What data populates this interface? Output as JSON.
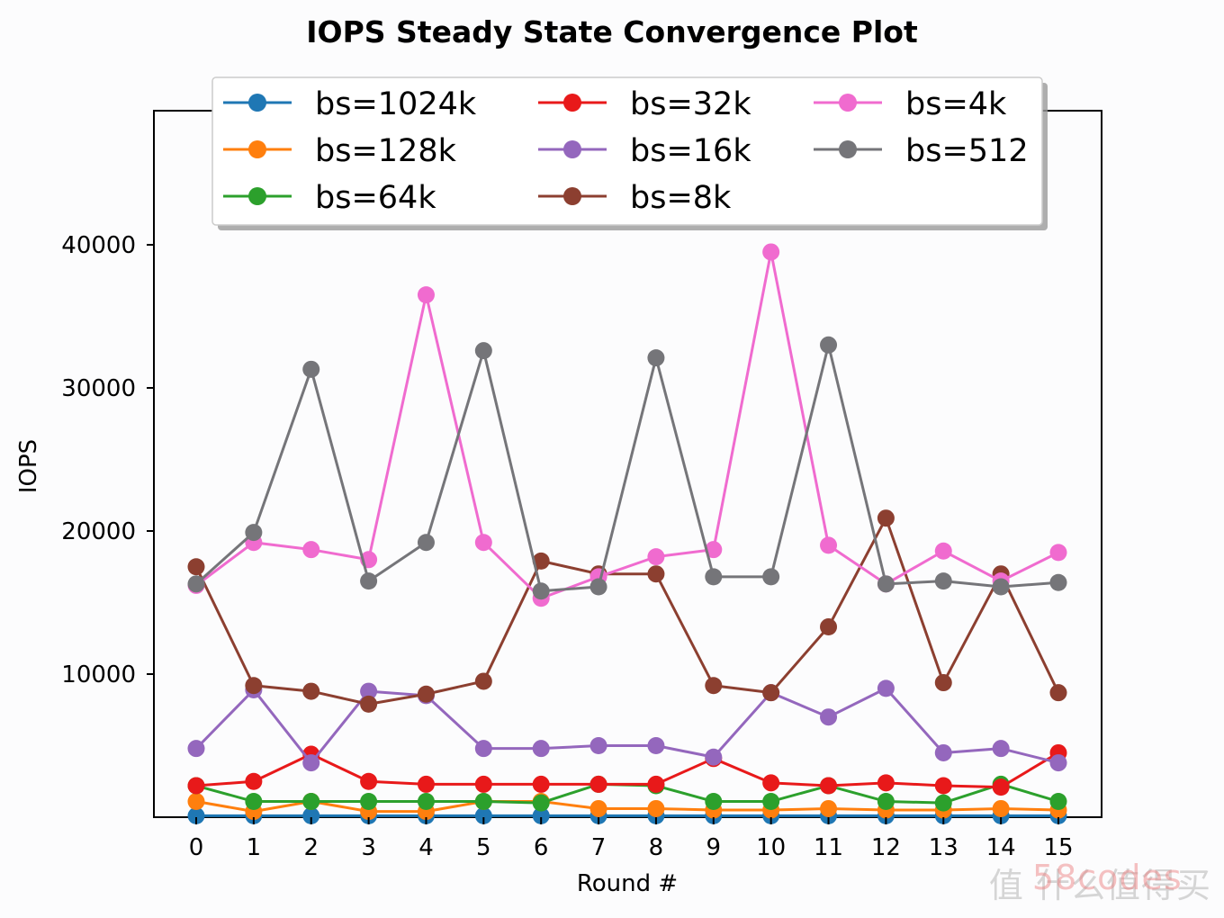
{
  "chart_data": {
    "type": "line",
    "title": "IOPS Steady State Convergence Plot",
    "xlabel": "Round #",
    "ylabel": "IOPS",
    "x": [
      0,
      1,
      2,
      3,
      4,
      5,
      6,
      7,
      8,
      9,
      10,
      11,
      12,
      13,
      14,
      15
    ],
    "xticks": [
      "0",
      "1",
      "2",
      "3",
      "4",
      "5",
      "6",
      "7",
      "8",
      "9",
      "10",
      "11",
      "12",
      "13",
      "14",
      "15"
    ],
    "yticks": [
      10000,
      20000,
      30000,
      40000
    ],
    "ytick_labels": [
      "10000",
      "20000",
      "30000",
      "40000"
    ],
    "xlim": [
      -0.75,
      15.75
    ],
    "ylim": [
      0,
      49300
    ],
    "grid": false,
    "legend_position": "top-center",
    "legend_columns": 3,
    "series": [
      {
        "name": "bs=1024k",
        "color": "#1f77b4",
        "values": [
          100,
          100,
          100,
          100,
          100,
          100,
          100,
          100,
          100,
          100,
          100,
          100,
          100,
          100,
          100,
          100
        ]
      },
      {
        "name": "bs=128k",
        "color": "#ff7f0e",
        "values": [
          1100,
          400,
          1100,
          400,
          400,
          1100,
          1100,
          600,
          600,
          500,
          500,
          600,
          500,
          500,
          600,
          500
        ]
      },
      {
        "name": "bs=64k",
        "color": "#2ca02c",
        "values": [
          2200,
          1100,
          1100,
          1100,
          1100,
          1100,
          1000,
          2300,
          2200,
          1100,
          1100,
          2200,
          1100,
          1000,
          2300,
          1100
        ]
      },
      {
        "name": "bs=32k",
        "color": "#e8191a",
        "values": [
          2200,
          2500,
          4400,
          2500,
          2300,
          2300,
          2300,
          2300,
          2300,
          4100,
          2400,
          2200,
          2400,
          2200,
          2100,
          4500
        ]
      },
      {
        "name": "bs=16k",
        "color": "#9467bd",
        "values": [
          4800,
          8900,
          3800,
          8800,
          8500,
          4800,
          4800,
          5000,
          5000,
          4200,
          8700,
          7000,
          9000,
          4500,
          4800,
          3800
        ]
      },
      {
        "name": "bs=8k",
        "color": "#8c3f30",
        "values": [
          17500,
          9200,
          8800,
          7900,
          8600,
          9500,
          17900,
          17000,
          17000,
          9200,
          8700,
          13300,
          20900,
          9400,
          17000,
          8700
        ]
      },
      {
        "name": "bs=4k",
        "color": "#f06bcf",
        "values": [
          16200,
          19200,
          18700,
          18000,
          36500,
          19200,
          15300,
          16800,
          18200,
          18700,
          39500,
          19000,
          16300,
          18600,
          16500,
          18500
        ]
      },
      {
        "name": "bs=512",
        "color": "#757579",
        "values": [
          16300,
          19900,
          31300,
          16500,
          19200,
          32600,
          15800,
          16100,
          32100,
          16800,
          16800,
          33000,
          16300,
          16500,
          16100,
          16400
        ]
      }
    ],
    "draw_order": [
      "bs=1024k",
      "bs=128k",
      "bs=64k",
      "bs=32k",
      "bs=16k",
      "bs=8k",
      "bs=4k",
      "bs=512"
    ]
  },
  "watermark": {
    "text": "值 什么值得买",
    "overlay": "58codes"
  }
}
